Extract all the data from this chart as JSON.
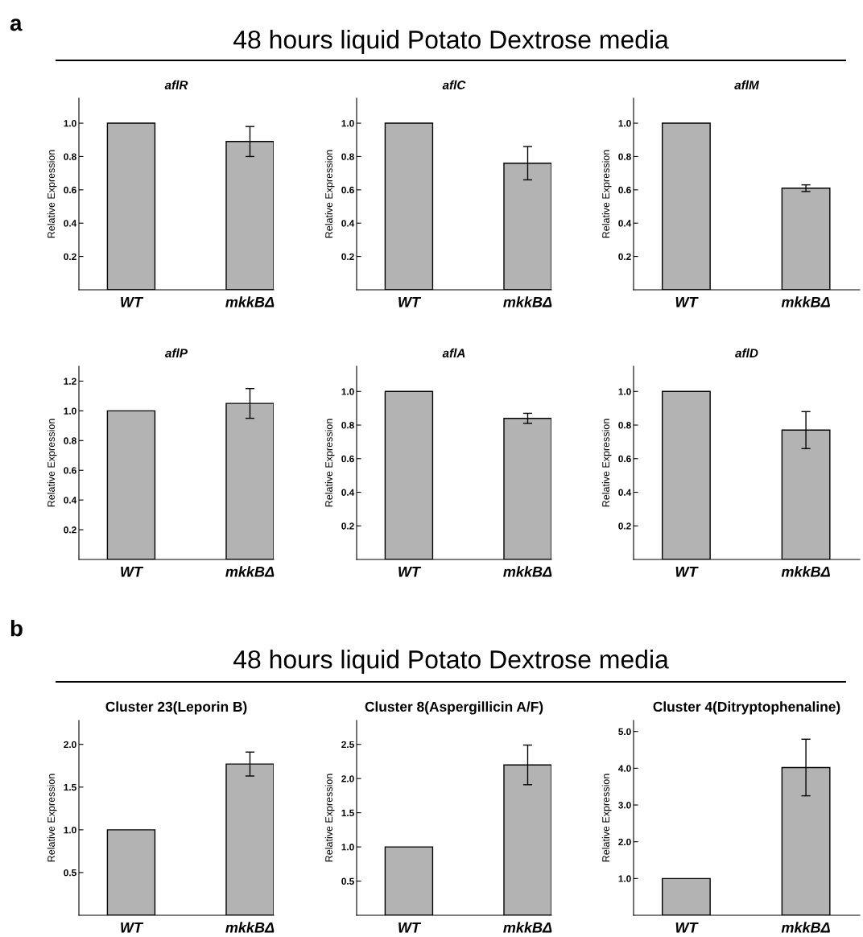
{
  "chart_data": [
    {
      "type": "bar",
      "title": "aflR",
      "ylabel": "Relative Expression",
      "categories": [
        "WT",
        "mkkBΔ"
      ],
      "values": [
        1.0,
        0.89
      ],
      "errors": [
        null,
        0.09
      ],
      "color": "#b3b3b3",
      "ylim": [
        0,
        1.15
      ],
      "yticks": [
        {
          "value": 0.2,
          "label": "0.2"
        },
        {
          "value": 0.4,
          "label": "0.4"
        },
        {
          "value": 0.6,
          "label": "0.6"
        },
        {
          "value": 0.8,
          "label": "0.8"
        },
        {
          "value": 1.0,
          "label": "1.0"
        }
      ],
      "grid": false,
      "annotations": [
        "a",
        "48 hours liquid Potato Dextrose media"
      ]
    },
    {
      "type": "bar",
      "title": "aflC",
      "ylabel": "Relative Expression",
      "categories": [
        "WT",
        "mkkBΔ"
      ],
      "values": [
        1.0,
        0.76
      ],
      "errors": [
        null,
        0.1
      ],
      "color": "#b3b3b3",
      "ylim": [
        0,
        1.15
      ],
      "yticks": [
        {
          "value": 0.2,
          "label": "0.2"
        },
        {
          "value": 0.4,
          "label": "0.4"
        },
        {
          "value": 0.6,
          "label": "0.6"
        },
        {
          "value": 0.8,
          "label": "0.8"
        },
        {
          "value": 1.0,
          "label": "1.0"
        }
      ],
      "grid": false
    },
    {
      "type": "bar",
      "title": "aflM",
      "ylabel": "Relative Expression",
      "categories": [
        "WT",
        "mkkBΔ"
      ],
      "values": [
        1.0,
        0.61
      ],
      "errors": [
        null,
        0.02
      ],
      "color": "#b3b3b3",
      "ylim": [
        0,
        1.15
      ],
      "yticks": [
        {
          "value": 0.2,
          "label": "0.2"
        },
        {
          "value": 0.4,
          "label": "0.4"
        },
        {
          "value": 0.6,
          "label": "0.6"
        },
        {
          "value": 0.8,
          "label": "0.8"
        },
        {
          "value": 1.0,
          "label": "1.0"
        }
      ],
      "grid": false
    },
    {
      "type": "bar",
      "title": "aflP",
      "ylabel": "Relative Expression",
      "categories": [
        "WT",
        "mkkBΔ"
      ],
      "values": [
        1.0,
        1.05
      ],
      "errors": [
        null,
        0.1
      ],
      "color": "#b3b3b3",
      "ylim": [
        0,
        1.3
      ],
      "yticks": [
        {
          "value": 0.2,
          "label": "0.2"
        },
        {
          "value": 0.4,
          "label": "0.4"
        },
        {
          "value": 0.6,
          "label": "0.6"
        },
        {
          "value": 0.8,
          "label": "0.8"
        },
        {
          "value": 1.0,
          "label": "1.0"
        },
        {
          "value": 1.2,
          "label": "1.2"
        }
      ],
      "grid": false
    },
    {
      "type": "bar",
      "title": "aflA",
      "ylabel": "Relative Expression",
      "categories": [
        "WT",
        "mkkBΔ"
      ],
      "values": [
        1.0,
        0.84
      ],
      "errors": [
        null,
        0.03
      ],
      "color": "#b3b3b3",
      "ylim": [
        0,
        1.15
      ],
      "yticks": [
        {
          "value": 0.2,
          "label": "0.2"
        },
        {
          "value": 0.4,
          "label": "0.4"
        },
        {
          "value": 0.6,
          "label": "0.6"
        },
        {
          "value": 0.8,
          "label": "0.8"
        },
        {
          "value": 1.0,
          "label": "1.0"
        }
      ],
      "grid": false
    },
    {
      "type": "bar",
      "title": "aflD",
      "ylabel": "Relative Expression",
      "categories": [
        "WT",
        "mkkBΔ"
      ],
      "values": [
        1.0,
        0.77
      ],
      "errors": [
        null,
        0.11
      ],
      "color": "#b3b3b3",
      "ylim": [
        0,
        1.15
      ],
      "yticks": [
        {
          "value": 0.2,
          "label": "0.2"
        },
        {
          "value": 0.4,
          "label": "0.4"
        },
        {
          "value": 0.6,
          "label": "0.6"
        },
        {
          "value": 0.8,
          "label": "0.8"
        },
        {
          "value": 1.0,
          "label": "1.0"
        }
      ],
      "grid": false
    },
    {
      "type": "bar",
      "title": "Cluster 23(Leporin B)",
      "ylabel": "Relative Expression",
      "categories": [
        "WT",
        "mkkBΔ"
      ],
      "values": [
        1.0,
        1.77
      ],
      "errors": [
        null,
        0.14
      ],
      "color": "#b3b3b3",
      "ylim": [
        0,
        2.28
      ],
      "yticks": [
        {
          "value": 0.5,
          "label": "0.5"
        },
        {
          "value": 1.0,
          "label": "1.0"
        },
        {
          "value": 1.5,
          "label": "1.5"
        },
        {
          "value": 2.0,
          "label": "2.0"
        }
      ],
      "grid": false,
      "annotations": [
        "b",
        "48 hours liquid Potato Dextrose media"
      ]
    },
    {
      "type": "bar",
      "title": "Cluster 8(Aspergillicin A/F)",
      "ylabel": "Relative Expression",
      "categories": [
        "WT",
        "mkkBΔ"
      ],
      "values": [
        1.0,
        2.2
      ],
      "errors": [
        null,
        0.29
      ],
      "color": "#b3b3b3",
      "ylim": [
        0,
        2.85
      ],
      "yticks": [
        {
          "value": 0.5,
          "label": "0.5"
        },
        {
          "value": 1.0,
          "label": "1.0"
        },
        {
          "value": 1.5,
          "label": "1.5"
        },
        {
          "value": 2.0,
          "label": "2.0"
        },
        {
          "value": 2.5,
          "label": "2.5"
        }
      ],
      "grid": false
    },
    {
      "type": "bar",
      "title": "Cluster 4(Ditryptophenaline)",
      "ylabel": "Relative Expression",
      "categories": [
        "WT",
        "mkkBΔ"
      ],
      "values": [
        1.0,
        4.02
      ],
      "errors": [
        null,
        0.77
      ],
      "color": "#b3b3b3",
      "ylim": [
        0,
        5.3
      ],
      "yticks": [
        {
          "value": 1.0,
          "label": "1.0"
        },
        {
          "value": 2.0,
          "label": "2.0"
        },
        {
          "value": 3.0,
          "label": "3.0"
        },
        {
          "value": 4.0,
          "label": "4.0"
        },
        {
          "value": 5.0,
          "label": "5.0"
        }
      ],
      "grid": false
    }
  ]
}
